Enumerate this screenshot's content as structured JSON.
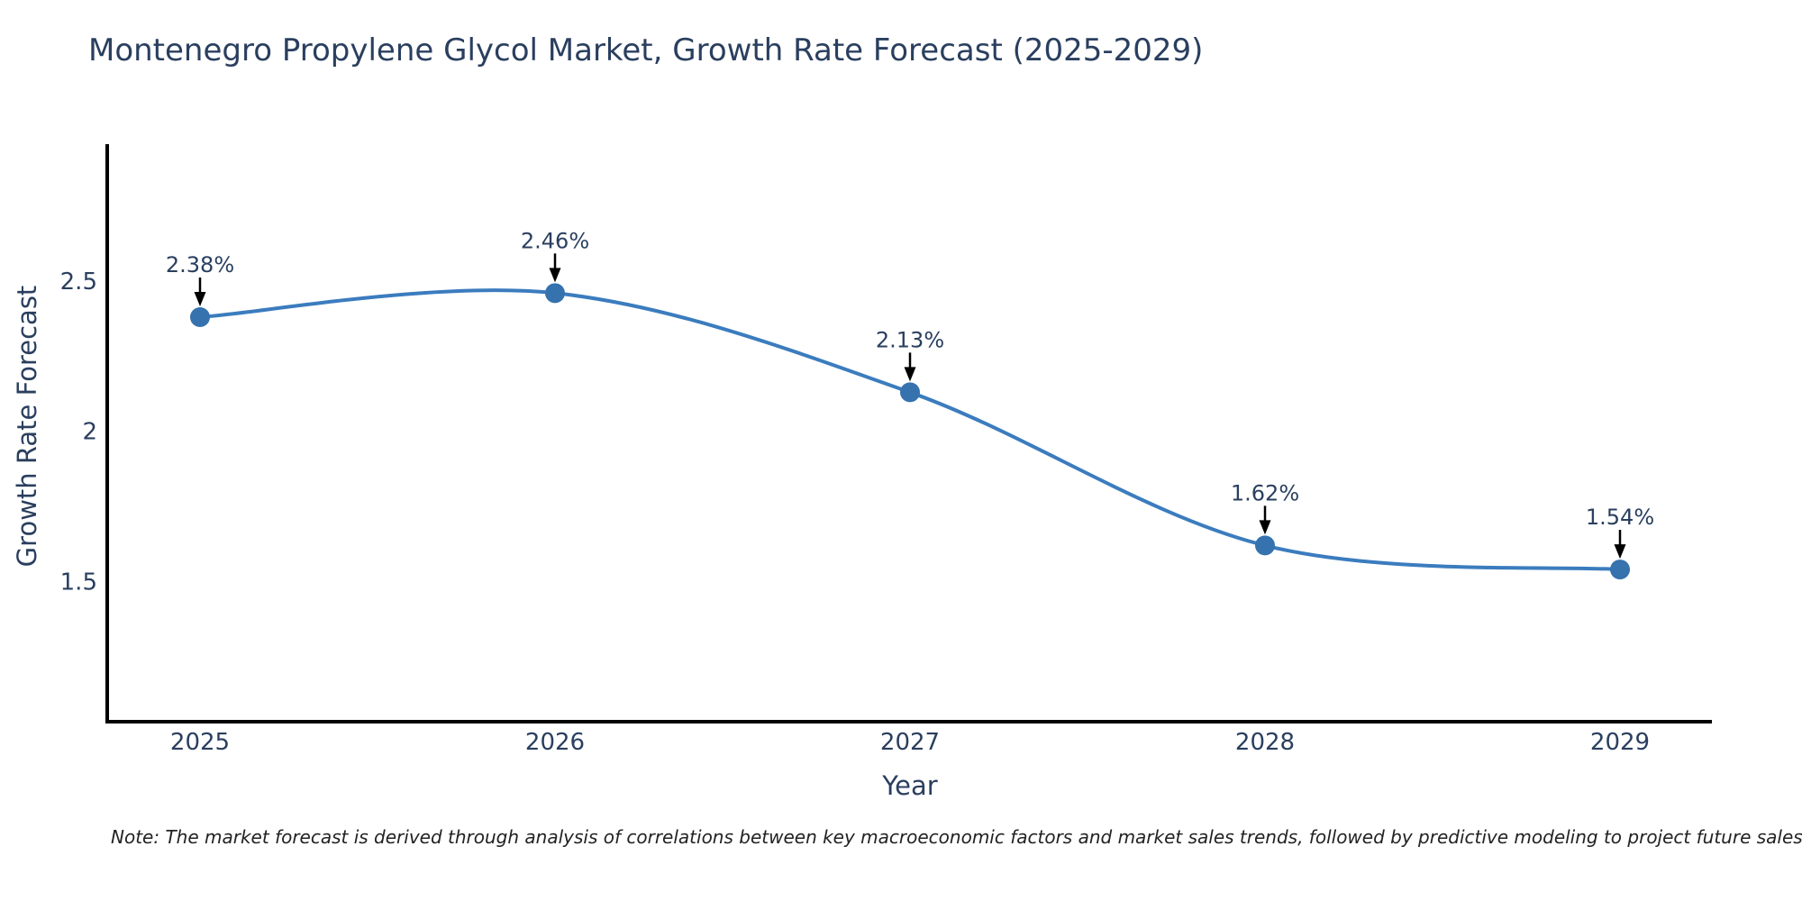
{
  "title": "Montenegro Propylene Glycol Market, Growth Rate Forecast (2025-2029)",
  "note": "Note: The market forecast is derived through analysis of correlations between key macroeconomic factors and market sales trends, followed by predictive modeling to project future sales.",
  "chart_data": {
    "type": "line",
    "title": "Montenegro Propylene Glycol Market, Growth Rate Forecast (2025-2029)",
    "xlabel": "Year",
    "ylabel": "Growth Rate Forecast",
    "categories": [
      "2025",
      "2026",
      "2027",
      "2028",
      "2029"
    ],
    "series": [
      {
        "name": "Growth Rate Forecast",
        "values": [
          2.38,
          2.46,
          2.13,
          1.62,
          1.54
        ],
        "point_labels": [
          "2.38%",
          "2.46%",
          "2.13%",
          "1.62%",
          "1.54%"
        ]
      }
    ],
    "yticks": [
      "1.5",
      "2",
      "2.5"
    ],
    "ytick_values": [
      1.5,
      2,
      2.5
    ],
    "ylim": [
      1.03,
      2.96
    ],
    "line_shape": "spline",
    "grid": false,
    "legend": "none",
    "annotations_style": "value label above point with downward black arrow",
    "colors": {
      "line": "#3b7cbe",
      "marker": "#3572ae",
      "arrow": "#000000",
      "text": "#2a3f5f",
      "axis": "#000000",
      "background": "#ffffff"
    }
  }
}
